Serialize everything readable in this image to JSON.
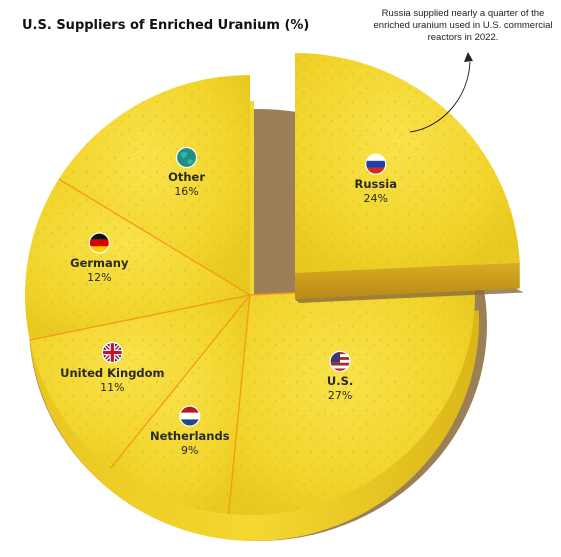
{
  "chart_data": {
    "type": "pie",
    "title": "U.S. Suppliers of Enriched Uranium (%)",
    "annotation": "Russia supplied nearly a quarter of the enriched uranium used in U.S. commercial reactors in 2022.",
    "unit": "%",
    "slices": [
      {
        "label": "Russia",
        "value": 24,
        "display": "24%",
        "flag": "russia-flag",
        "exploded": true
      },
      {
        "label": "U.S.",
        "value": 27,
        "display": "27%",
        "flag": "usa-flag",
        "exploded": false
      },
      {
        "label": "Netherlands",
        "value": 9,
        "display": "9%",
        "flag": "netherlands-flag",
        "exploded": false
      },
      {
        "label": "United Kingdom",
        "value": 11,
        "display": "11%",
        "flag": "uk-flag",
        "exploded": false
      },
      {
        "label": "Germany",
        "value": 12,
        "display": "12%",
        "flag": "germany-flag",
        "exploded": false
      },
      {
        "label": "Other",
        "value": 16,
        "display": "16%",
        "flag": "globe-icon",
        "exploded": false
      }
    ],
    "colors": {
      "cake_top": "#f5d933",
      "cake_side": "#e6c21c",
      "cut_line": "#f39a1c",
      "crumb": "#d9b22b",
      "cake_base": "#8a6a3a"
    }
  }
}
